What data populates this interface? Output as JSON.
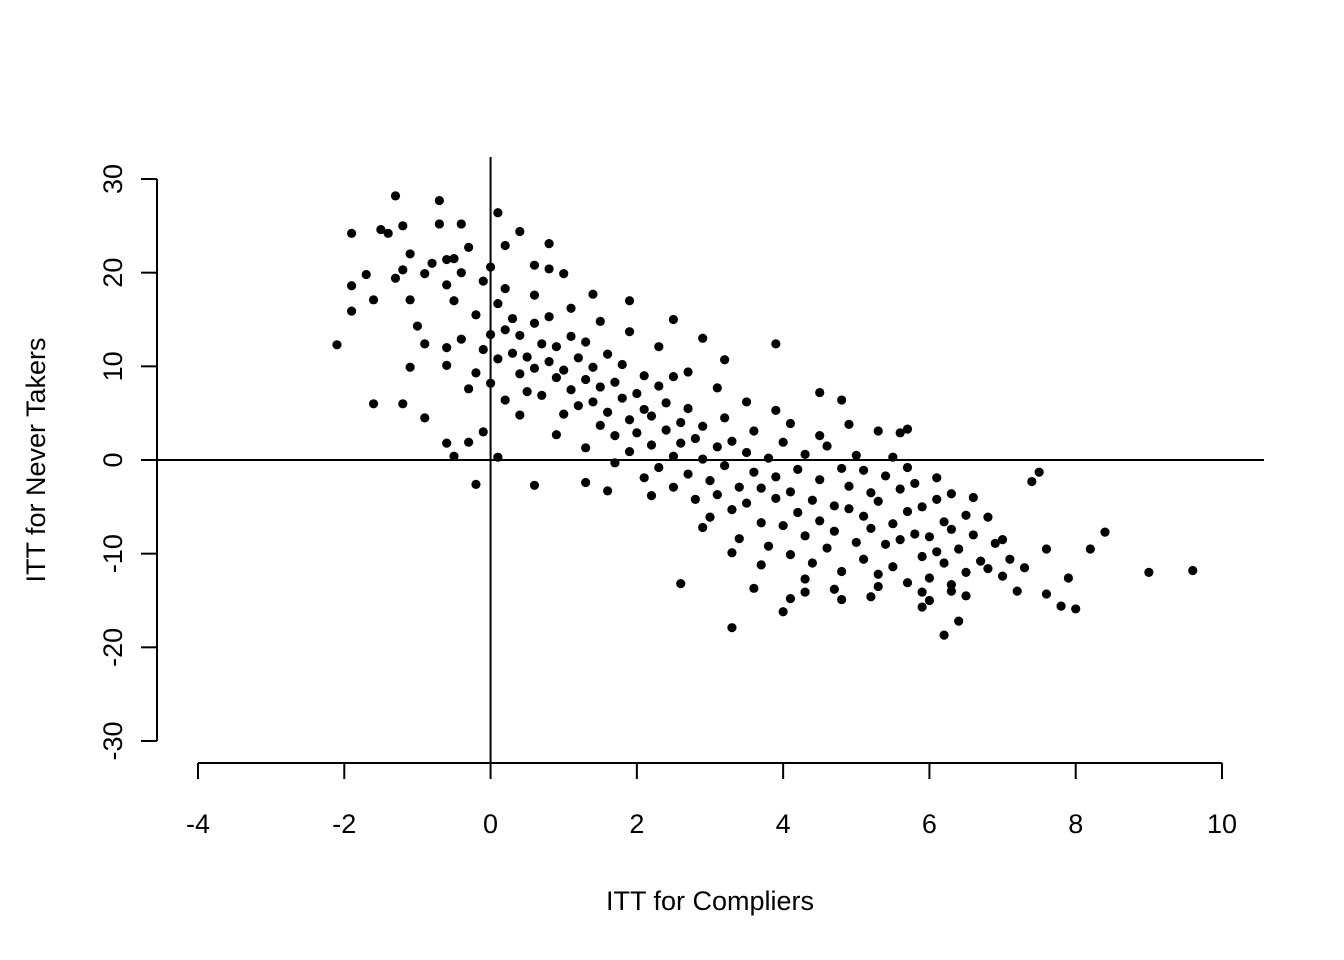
{
  "chart_data": {
    "type": "scatter",
    "title": "",
    "xlabel": "ITT for Compliers",
    "ylabel": "ITT for Never Takers",
    "xlim": [
      -4,
      10
    ],
    "ylim": [
      -30,
      30
    ],
    "x_ticks": [
      "-4",
      "-2",
      "0",
      "2",
      "4",
      "6",
      "8",
      "10"
    ],
    "y_ticks": [
      "-30",
      "-20",
      "-10",
      "0",
      "10",
      "20",
      "30"
    ],
    "reference_lines": {
      "vertical_x": 0,
      "horizontal_y": 0
    },
    "grid": false,
    "legend": "none",
    "marker_color": "#000000",
    "series": [
      {
        "points": [
          [
            -2.1,
            12.3
          ],
          [
            -1.9,
            24.2
          ],
          [
            -1.9,
            18.6
          ],
          [
            -1.9,
            15.9
          ],
          [
            -1.7,
            19.8
          ],
          [
            -1.6,
            17.1
          ],
          [
            -1.6,
            6.0
          ],
          [
            -1.5,
            24.6
          ],
          [
            -1.4,
            24.2
          ],
          [
            -1.3,
            28.2
          ],
          [
            -1.3,
            19.4
          ],
          [
            -1.2,
            25.0
          ],
          [
            -1.2,
            20.3
          ],
          [
            -1.2,
            6.0
          ],
          [
            -1.1,
            22.0
          ],
          [
            -1.1,
            17.1
          ],
          [
            -1.1,
            9.9
          ],
          [
            -1.0,
            14.3
          ],
          [
            -0.9,
            19.9
          ],
          [
            -0.9,
            12.4
          ],
          [
            -0.9,
            4.5
          ],
          [
            -0.8,
            21.0
          ],
          [
            -0.7,
            27.7
          ],
          [
            -0.7,
            25.2
          ],
          [
            -0.6,
            21.4
          ],
          [
            -0.6,
            18.7
          ],
          [
            -0.6,
            12.0
          ],
          [
            -0.6,
            1.8
          ],
          [
            -0.5,
            21.5
          ],
          [
            -0.5,
            17.0
          ],
          [
            -0.5,
            0.4
          ],
          [
            -0.4,
            25.2
          ],
          [
            -0.4,
            20.0
          ],
          [
            -0.3,
            22.7
          ],
          [
            -0.3,
            1.9
          ],
          [
            -0.2,
            -2.6
          ],
          [
            -0.1,
            19.1
          ],
          [
            -0.1,
            3.0
          ],
          [
            0.0,
            20.6
          ],
          [
            0.1,
            26.4
          ],
          [
            0.1,
            0.3
          ],
          [
            0.2,
            22.9
          ],
          [
            0.4,
            24.4
          ],
          [
            0.6,
            20.8
          ],
          [
            0.6,
            -2.7
          ],
          [
            0.8,
            23.1
          ],
          [
            0.8,
            20.4
          ],
          [
            1.0,
            19.9
          ],
          [
            1.3,
            -2.4
          ],
          [
            1.4,
            17.7
          ],
          [
            1.6,
            -3.3
          ],
          [
            1.9,
            17.0
          ],
          [
            2.2,
            -3.8
          ],
          [
            2.5,
            15.0
          ],
          [
            2.6,
            -13.2
          ],
          [
            2.9,
            13.0
          ],
          [
            3.2,
            10.7
          ],
          [
            3.3,
            -17.9
          ],
          [
            3.6,
            -13.7
          ],
          [
            3.9,
            12.4
          ],
          [
            4.0,
            -16.2
          ],
          [
            4.1,
            -14.8
          ],
          [
            4.3,
            -14.1
          ],
          [
            4.5,
            7.2
          ],
          [
            4.8,
            6.4
          ],
          [
            4.8,
            -14.9
          ],
          [
            5.2,
            -14.6
          ],
          [
            5.3,
            3.1
          ],
          [
            5.6,
            2.9
          ],
          [
            5.7,
            3.3
          ],
          [
            5.9,
            -15.7
          ],
          [
            6.0,
            -15.0
          ],
          [
            6.2,
            -18.7
          ],
          [
            6.3,
            -14.0
          ],
          [
            6.4,
            -17.2
          ],
          [
            6.5,
            -14.5
          ],
          [
            6.8,
            -6.1
          ],
          [
            7.0,
            -8.5
          ],
          [
            7.2,
            -14.0
          ],
          [
            7.4,
            -2.3
          ],
          [
            7.5,
            -1.3
          ],
          [
            7.6,
            -9.5
          ],
          [
            7.6,
            -14.3
          ],
          [
            7.8,
            -15.6
          ],
          [
            7.9,
            -12.6
          ],
          [
            8.0,
            -15.9
          ],
          [
            8.2,
            -9.5
          ],
          [
            8.4,
            -7.7
          ],
          [
            9.0,
            -12.0
          ],
          [
            9.6,
            -11.8
          ],
          [
            -0.6,
            10.1
          ],
          [
            -0.4,
            12.9
          ],
          [
            -0.3,
            7.6
          ],
          [
            -0.2,
            15.5
          ],
          [
            -0.2,
            9.3
          ],
          [
            -0.1,
            11.8
          ],
          [
            0.0,
            13.4
          ],
          [
            0.0,
            8.2
          ],
          [
            0.1,
            16.7
          ],
          [
            0.1,
            10.8
          ],
          [
            0.2,
            13.9
          ],
          [
            0.2,
            6.4
          ],
          [
            0.3,
            11.4
          ],
          [
            0.3,
            15.1
          ],
          [
            0.4,
            9.2
          ],
          [
            0.4,
            13.3
          ],
          [
            0.5,
            7.3
          ],
          [
            0.5,
            11.0
          ],
          [
            0.6,
            14.6
          ],
          [
            0.6,
            9.8
          ],
          [
            0.7,
            12.4
          ],
          [
            0.7,
            6.9
          ],
          [
            0.8,
            10.5
          ],
          [
            0.8,
            15.3
          ],
          [
            0.9,
            8.8
          ],
          [
            0.9,
            12.1
          ],
          [
            1.0,
            4.9
          ],
          [
            1.0,
            9.6
          ],
          [
            1.1,
            13.2
          ],
          [
            1.1,
            7.5
          ],
          [
            1.2,
            10.9
          ],
          [
            1.2,
            5.8
          ],
          [
            1.3,
            8.6
          ],
          [
            1.3,
            12.6
          ],
          [
            1.4,
            6.2
          ],
          [
            1.4,
            9.9
          ],
          [
            1.5,
            3.7
          ],
          [
            1.5,
            7.8
          ],
          [
            1.6,
            11.3
          ],
          [
            1.6,
            5.1
          ],
          [
            1.7,
            8.3
          ],
          [
            1.7,
            2.6
          ],
          [
            1.8,
            6.6
          ],
          [
            1.8,
            10.2
          ],
          [
            1.9,
            4.3
          ],
          [
            1.9,
            0.9
          ],
          [
            2.0,
            7.1
          ],
          [
            2.0,
            2.9
          ],
          [
            2.1,
            5.4
          ],
          [
            2.1,
            9.0
          ],
          [
            2.2,
            1.6
          ],
          [
            2.2,
            4.7
          ],
          [
            2.3,
            7.9
          ],
          [
            2.3,
            -0.8
          ],
          [
            2.4,
            3.2
          ],
          [
            2.4,
            6.1
          ],
          [
            2.5,
            0.4
          ],
          [
            2.5,
            -2.9
          ],
          [
            2.6,
            4.0
          ],
          [
            2.6,
            1.8
          ],
          [
            2.7,
            -1.5
          ],
          [
            2.7,
            5.5
          ],
          [
            2.8,
            2.3
          ],
          [
            2.8,
            -4.2
          ],
          [
            2.9,
            0.1
          ],
          [
            2.9,
            3.6
          ],
          [
            3.0,
            -2.2
          ],
          [
            3.0,
            -6.1
          ],
          [
            3.1,
            1.4
          ],
          [
            3.1,
            -3.7
          ],
          [
            3.2,
            4.5
          ],
          [
            3.2,
            -0.6
          ],
          [
            3.3,
            -5.3
          ],
          [
            3.3,
            2.0
          ],
          [
            3.4,
            -2.9
          ],
          [
            3.4,
            -8.4
          ],
          [
            3.5,
            0.8
          ],
          [
            3.5,
            -4.6
          ],
          [
            3.6,
            -1.3
          ],
          [
            3.6,
            3.1
          ],
          [
            3.7,
            -6.7
          ],
          [
            3.7,
            -3.0
          ],
          [
            3.8,
            0.2
          ],
          [
            3.8,
            -9.2
          ],
          [
            3.9,
            -4.1
          ],
          [
            3.9,
            -1.8
          ],
          [
            4.0,
            -7.0
          ],
          [
            4.0,
            1.9
          ],
          [
            4.1,
            -3.4
          ],
          [
            4.1,
            -10.1
          ],
          [
            4.2,
            -5.6
          ],
          [
            4.2,
            -1.0
          ],
          [
            4.3,
            -8.1
          ],
          [
            4.3,
            0.6
          ],
          [
            4.4,
            -4.3
          ],
          [
            4.4,
            -11.0
          ],
          [
            4.5,
            -6.5
          ],
          [
            4.5,
            -2.1
          ],
          [
            4.6,
            -9.4
          ],
          [
            4.6,
            1.5
          ],
          [
            4.7,
            -4.9
          ],
          [
            4.7,
            -7.6
          ],
          [
            4.8,
            -0.9
          ],
          [
            4.8,
            -11.9
          ],
          [
            4.9,
            -5.2
          ],
          [
            4.9,
            -2.8
          ],
          [
            5.0,
            -8.8
          ],
          [
            5.0,
            0.5
          ],
          [
            5.1,
            -6.0
          ],
          [
            5.1,
            -10.6
          ],
          [
            5.2,
            -3.5
          ],
          [
            5.2,
            -7.3
          ],
          [
            5.3,
            -12.2
          ],
          [
            5.3,
            -4.4
          ],
          [
            5.4,
            -9.0
          ],
          [
            5.4,
            -1.7
          ],
          [
            5.5,
            -6.8
          ],
          [
            5.5,
            -11.4
          ],
          [
            5.6,
            -3.1
          ],
          [
            5.6,
            -8.5
          ],
          [
            5.7,
            -5.5
          ],
          [
            5.7,
            -13.1
          ],
          [
            5.8,
            -7.9
          ],
          [
            5.8,
            -2.5
          ],
          [
            5.9,
            -10.3
          ],
          [
            5.9,
            -5.0
          ],
          [
            6.0,
            -8.2
          ],
          [
            6.0,
            -12.6
          ],
          [
            6.1,
            -4.2
          ],
          [
            6.1,
            -9.8
          ],
          [
            6.2,
            -6.6
          ],
          [
            6.2,
            -11.0
          ],
          [
            6.3,
            -7.4
          ],
          [
            6.3,
            -3.6
          ],
          [
            6.4,
            -9.5
          ],
          [
            6.5,
            -12.0
          ],
          [
            6.5,
            -5.9
          ],
          [
            6.6,
            -8.0
          ],
          [
            6.7,
            -10.8
          ],
          [
            6.8,
            -11.6
          ],
          [
            6.9,
            -8.9
          ],
          [
            7.0,
            -12.4
          ],
          [
            7.1,
            -10.6
          ],
          [
            7.3,
            -11.5
          ],
          [
            0.2,
            18.3
          ],
          [
            0.4,
            4.8
          ],
          [
            0.6,
            17.6
          ],
          [
            0.9,
            2.7
          ],
          [
            1.1,
            16.2
          ],
          [
            1.3,
            1.3
          ],
          [
            1.5,
            14.8
          ],
          [
            1.7,
            -0.3
          ],
          [
            1.9,
            13.7
          ],
          [
            2.1,
            -1.9
          ],
          [
            2.3,
            12.1
          ],
          [
            2.5,
            8.9
          ],
          [
            2.7,
            9.4
          ],
          [
            2.9,
            -7.2
          ],
          [
            3.1,
            7.7
          ],
          [
            3.3,
            -9.9
          ],
          [
            3.5,
            6.2
          ],
          [
            3.7,
            -11.2
          ],
          [
            3.9,
            5.3
          ],
          [
            4.1,
            3.9
          ],
          [
            4.3,
            -12.7
          ],
          [
            4.5,
            2.6
          ],
          [
            4.7,
            -13.8
          ],
          [
            4.9,
            3.8
          ],
          [
            5.1,
            -1.1
          ],
          [
            5.3,
            -13.5
          ],
          [
            5.5,
            0.3
          ],
          [
            5.7,
            -0.8
          ],
          [
            5.9,
            -14.1
          ],
          [
            6.1,
            -1.9
          ],
          [
            6.3,
            -13.3
          ],
          [
            6.6,
            -4.0
          ]
        ]
      }
    ]
  }
}
